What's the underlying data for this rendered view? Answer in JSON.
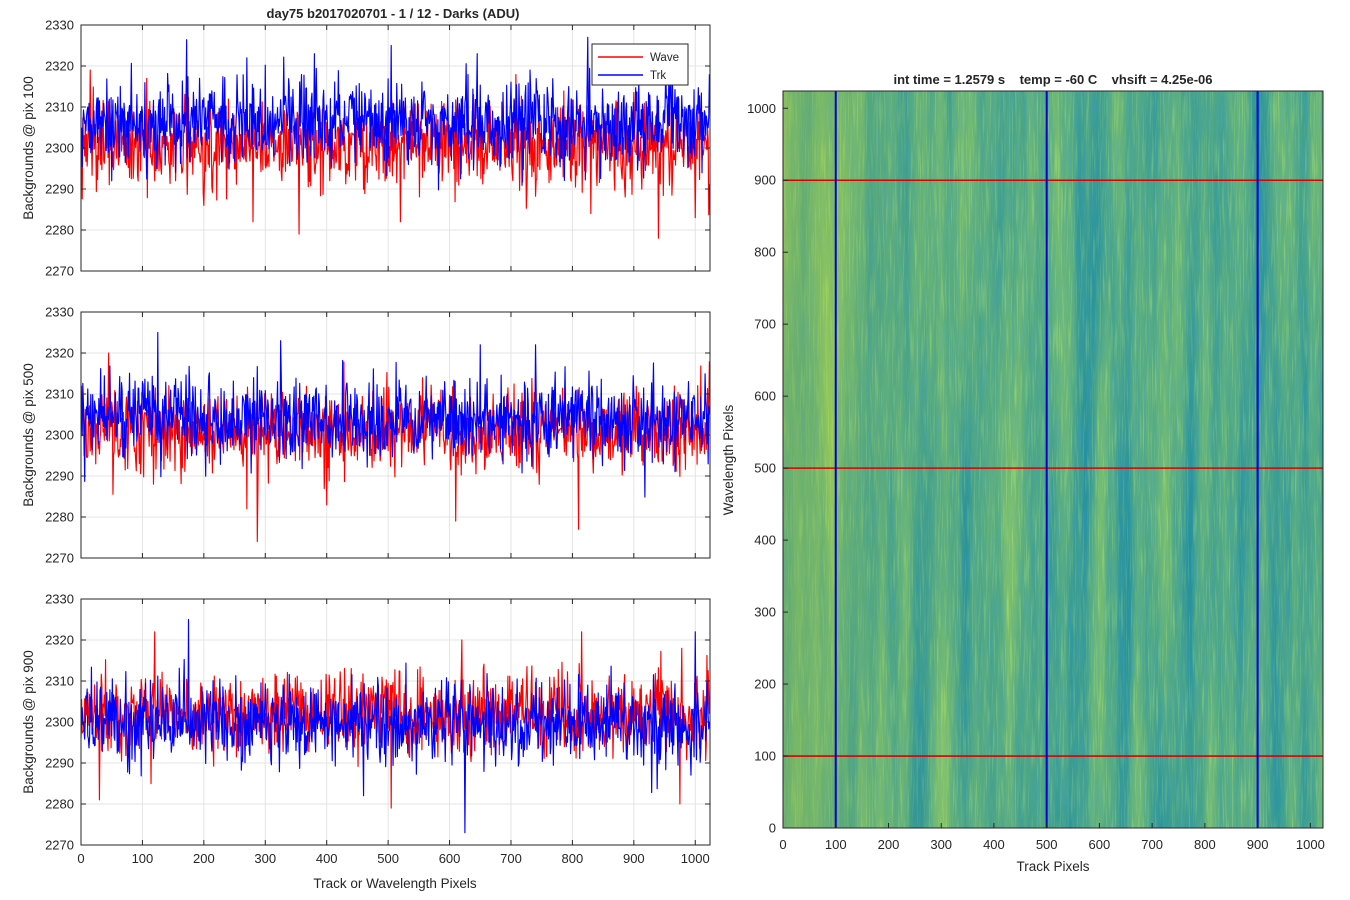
{
  "figure": {
    "title": "day75 b2017020701 - 1 / 12 - Darks (ADU)",
    "line_panel_xlabel": "Track or Wavelength Pixels"
  },
  "chart_data": [
    {
      "type": "line",
      "ylabel": "Backgrounds @ pix 100",
      "xlim": [
        0,
        1024
      ],
      "ylim": [
        2270,
        2330
      ],
      "xticks": [
        0,
        100,
        200,
        300,
        400,
        500,
        600,
        700,
        800,
        900,
        1000
      ],
      "yticks": [
        2270,
        2280,
        2290,
        2300,
        2310,
        2320,
        2330
      ],
      "grid": true,
      "legend": {
        "placement": "top-right",
        "entries": [
          "Wave",
          "Trk"
        ]
      },
      "series": [
        {
          "name": "Wave",
          "color": "#ff0000",
          "n_points": 1024,
          "mean": 2301,
          "std": 5.3,
          "keypoints": [
            [
              0,
              2305
            ],
            [
              15,
              2319
            ],
            [
              130,
              2295
            ],
            [
              200,
              2286
            ],
            [
              280,
              2282
            ],
            [
              355,
              2279
            ],
            [
              520,
              2282
            ],
            [
              830,
              2284
            ],
            [
              940,
              2278
            ],
            [
              1000,
              2283
            ]
          ]
        },
        {
          "name": "Trk",
          "color": "#0000ff",
          "n_points": 1024,
          "mean": 2306,
          "std": 5.2,
          "keypoints": [
            [
              0,
              2300
            ],
            [
              50,
              2292
            ],
            [
              270,
              2322
            ],
            [
              380,
              2323
            ],
            [
              505,
              2325
            ],
            [
              645,
              2323
            ],
            [
              825,
              2327
            ],
            [
              960,
              2322
            ],
            [
              1024,
              2318
            ]
          ]
        }
      ]
    },
    {
      "type": "line",
      "ylabel": "Backgrounds @ pix 500",
      "xlim": [
        0,
        1024
      ],
      "ylim": [
        2270,
        2330
      ],
      "xticks": [
        0,
        100,
        200,
        300,
        400,
        500,
        600,
        700,
        800,
        900,
        1000
      ],
      "yticks": [
        2270,
        2280,
        2290,
        2300,
        2310,
        2320,
        2330
      ],
      "grid": true,
      "series": [
        {
          "name": "Wave",
          "color": "#ff0000",
          "n_points": 1024,
          "mean": 2301,
          "std": 5.0,
          "keypoints": [
            [
              0,
              2302
            ],
            [
              45,
              2320
            ],
            [
              270,
              2282
            ],
            [
              287,
              2274
            ],
            [
              400,
              2283
            ],
            [
              610,
              2279
            ],
            [
              810,
              2277
            ],
            [
              1024,
              2318
            ]
          ]
        },
        {
          "name": "Trk",
          "color": "#0000ff",
          "n_points": 1024,
          "mean": 2304,
          "std": 5.0,
          "keypoints": [
            [
              0,
              2312
            ],
            [
              125,
              2325
            ],
            [
              325,
              2323
            ],
            [
              650,
              2322
            ],
            [
              740,
              2322
            ],
            [
              1024,
              2305
            ]
          ]
        }
      ]
    },
    {
      "type": "line",
      "ylabel": "Backgrounds @ pix 900",
      "xlim": [
        0,
        1024
      ],
      "ylim": [
        2270,
        2330
      ],
      "xticks": [
        0,
        100,
        200,
        300,
        400,
        500,
        600,
        700,
        800,
        900,
        1000
      ],
      "yticks": [
        2270,
        2280,
        2290,
        2300,
        2310,
        2320,
        2330
      ],
      "grid": true,
      "series": [
        {
          "name": "Wave",
          "color": "#ff0000",
          "n_points": 1024,
          "mean": 2302,
          "std": 5.0,
          "keypoints": [
            [
              0,
              2305
            ],
            [
              30,
              2281
            ],
            [
              120,
              2322
            ],
            [
              505,
              2279
            ],
            [
              620,
              2320
            ],
            [
              815,
              2322
            ],
            [
              975,
              2280
            ],
            [
              1024,
              2302
            ]
          ]
        },
        {
          "name": "Trk",
          "color": "#0000ff",
          "n_points": 1024,
          "mean": 2300,
          "std": 5.0,
          "keypoints": [
            [
              0,
              2296
            ],
            [
              175,
              2325
            ],
            [
              460,
              2282
            ],
            [
              625,
              2273
            ],
            [
              1000,
              2322
            ],
            [
              1024,
              2300
            ]
          ]
        }
      ]
    },
    {
      "type": "heatmap",
      "title": "int time = 1.2579 s    temp = -60 C    vhsift = 4.25e-06",
      "xlabel": "Track Pixels",
      "ylabel": "Wavelength Pixels",
      "xlim": [
        0,
        1024
      ],
      "ylim": [
        0,
        1024
      ],
      "xticks": [
        0,
        100,
        200,
        300,
        400,
        500,
        600,
        700,
        800,
        900,
        1000
      ],
      "yticks": [
        0,
        100,
        200,
        300,
        400,
        500,
        600,
        700,
        800,
        900,
        1000
      ],
      "colormap": "parula",
      "colors": {
        "base": "#2aa898",
        "low": "#1f95c9",
        "high": "#9cc43e"
      },
      "vertical_markers": {
        "color": "#0000cc",
        "x": [
          100,
          500,
          900
        ]
      },
      "horizontal_markers": {
        "color": "#dd0000",
        "y": [
          100,
          500,
          900
        ]
      }
    }
  ]
}
